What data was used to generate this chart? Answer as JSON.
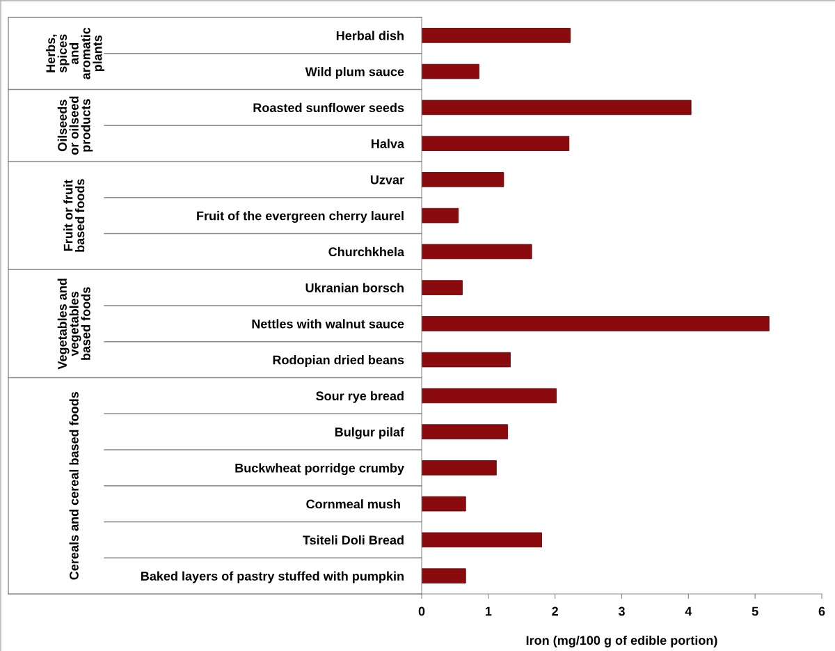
{
  "chart_data": {
    "type": "bar",
    "orientation": "horizontal",
    "categories": [
      "Herbal dish",
      "Wild plum sauce",
      "Roasted sunflower seeds",
      "Halva",
      "Uzvar",
      "Fruit of the evergreen cherry laurel",
      "Churchkhela",
      "Ukranian borsch",
      "Nettles with walnut sauce",
      "Rodopian dried beans",
      "Sour rye bread",
      "Bulgur pilaf",
      "Buckwheat porridge crumby",
      "Cornmeal mush ",
      "Tsiteli Doli Bread",
      "Baked layers of pastry stuffed with pumpkin"
    ],
    "values": [
      2.23,
      0.86,
      4.04,
      2.21,
      1.23,
      0.55,
      1.65,
      0.61,
      5.21,
      1.33,
      2.02,
      1.29,
      1.12,
      0.66,
      1.8,
      0.66
    ],
    "color": "#8b0a0e",
    "xlabel": "Iron (mg/100 g of edible portion)",
    "xlim": [
      0,
      6
    ],
    "xticks": [
      0,
      1,
      2,
      3,
      4,
      5,
      6
    ],
    "annotations": [
      "Herbs,\nspices\nand\naromatic\nplants",
      "Oilseeds\nor oilseed\nproducts",
      "Fruit or fruit\nbased foods",
      "Vegetables and\nvegetables\nbased foods",
      "Cereals and cereal based foods"
    ],
    "grid": false,
    "legend": false
  }
}
